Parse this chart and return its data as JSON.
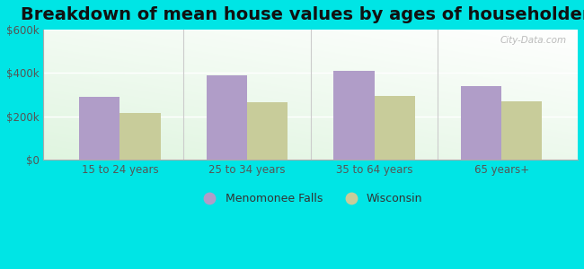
{
  "title": "Breakdown of mean house values by ages of householders",
  "categories": [
    "15 to 24 years",
    "25 to 34 years",
    "35 to 64 years",
    "65 years+"
  ],
  "menomonee_falls": [
    290000,
    390000,
    410000,
    340000
  ],
  "wisconsin": [
    215000,
    265000,
    295000,
    270000
  ],
  "bar_color_mf": "#b09dc8",
  "bar_color_wi": "#c8cc9a",
  "outer_bg": "#00e5e5",
  "ylim": [
    0,
    600000
  ],
  "yticks": [
    0,
    200000,
    400000,
    600000
  ],
  "ytick_labels": [
    "$0",
    "$200k",
    "$400k",
    "$600k"
  ],
  "legend_mf": "Menomonee Falls",
  "legend_wi": "Wisconsin",
  "title_fontsize": 14,
  "bar_width": 0.32,
  "watermark": "City-Data.com"
}
